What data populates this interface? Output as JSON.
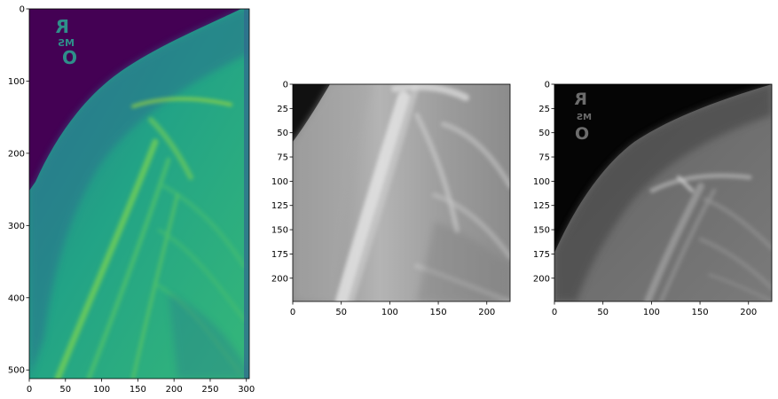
{
  "chart_data": [
    {
      "type": "heatmap",
      "colormap": "viridis",
      "xlim": [
        0,
        304
      ],
      "ylim": [
        512,
        0
      ],
      "xticks": [
        0,
        50,
        100,
        150,
        200,
        250,
        300
      ],
      "yticks": [
        0,
        100,
        200,
        300,
        400,
        500
      ],
      "xticklabels": [
        "0",
        "50",
        "100",
        "150",
        "200",
        "250",
        "300"
      ],
      "yticklabels": [
        "0",
        "100",
        "200",
        "300",
        "400",
        "500"
      ],
      "marker_text": [
        "R",
        "MS",
        "O"
      ]
    },
    {
      "type": "heatmap",
      "colormap": "gray",
      "xlim": [
        0,
        224
      ],
      "ylim": [
        224,
        0
      ],
      "xticks": [
        0,
        50,
        100,
        150,
        200
      ],
      "yticks": [
        0,
        25,
        50,
        75,
        100,
        125,
        150,
        175,
        200
      ],
      "xticklabels": [
        "0",
        "50",
        "100",
        "150",
        "200"
      ],
      "yticklabels": [
        "0",
        "25",
        "50",
        "75",
        "100",
        "125",
        "150",
        "175",
        "200"
      ]
    },
    {
      "type": "heatmap",
      "colormap": "gray",
      "xlim": [
        0,
        224
      ],
      "ylim": [
        224,
        0
      ],
      "xticks": [
        0,
        50,
        100,
        150,
        200
      ],
      "yticks": [
        0,
        25,
        50,
        75,
        100,
        125,
        150,
        175,
        200
      ],
      "xticklabels": [
        "0",
        "50",
        "100",
        "150",
        "200"
      ],
      "yticklabels": [
        "0",
        "25",
        "50",
        "75",
        "100",
        "125",
        "150",
        "175",
        "200"
      ],
      "marker_text": [
        "R",
        "MS",
        "O"
      ]
    }
  ]
}
